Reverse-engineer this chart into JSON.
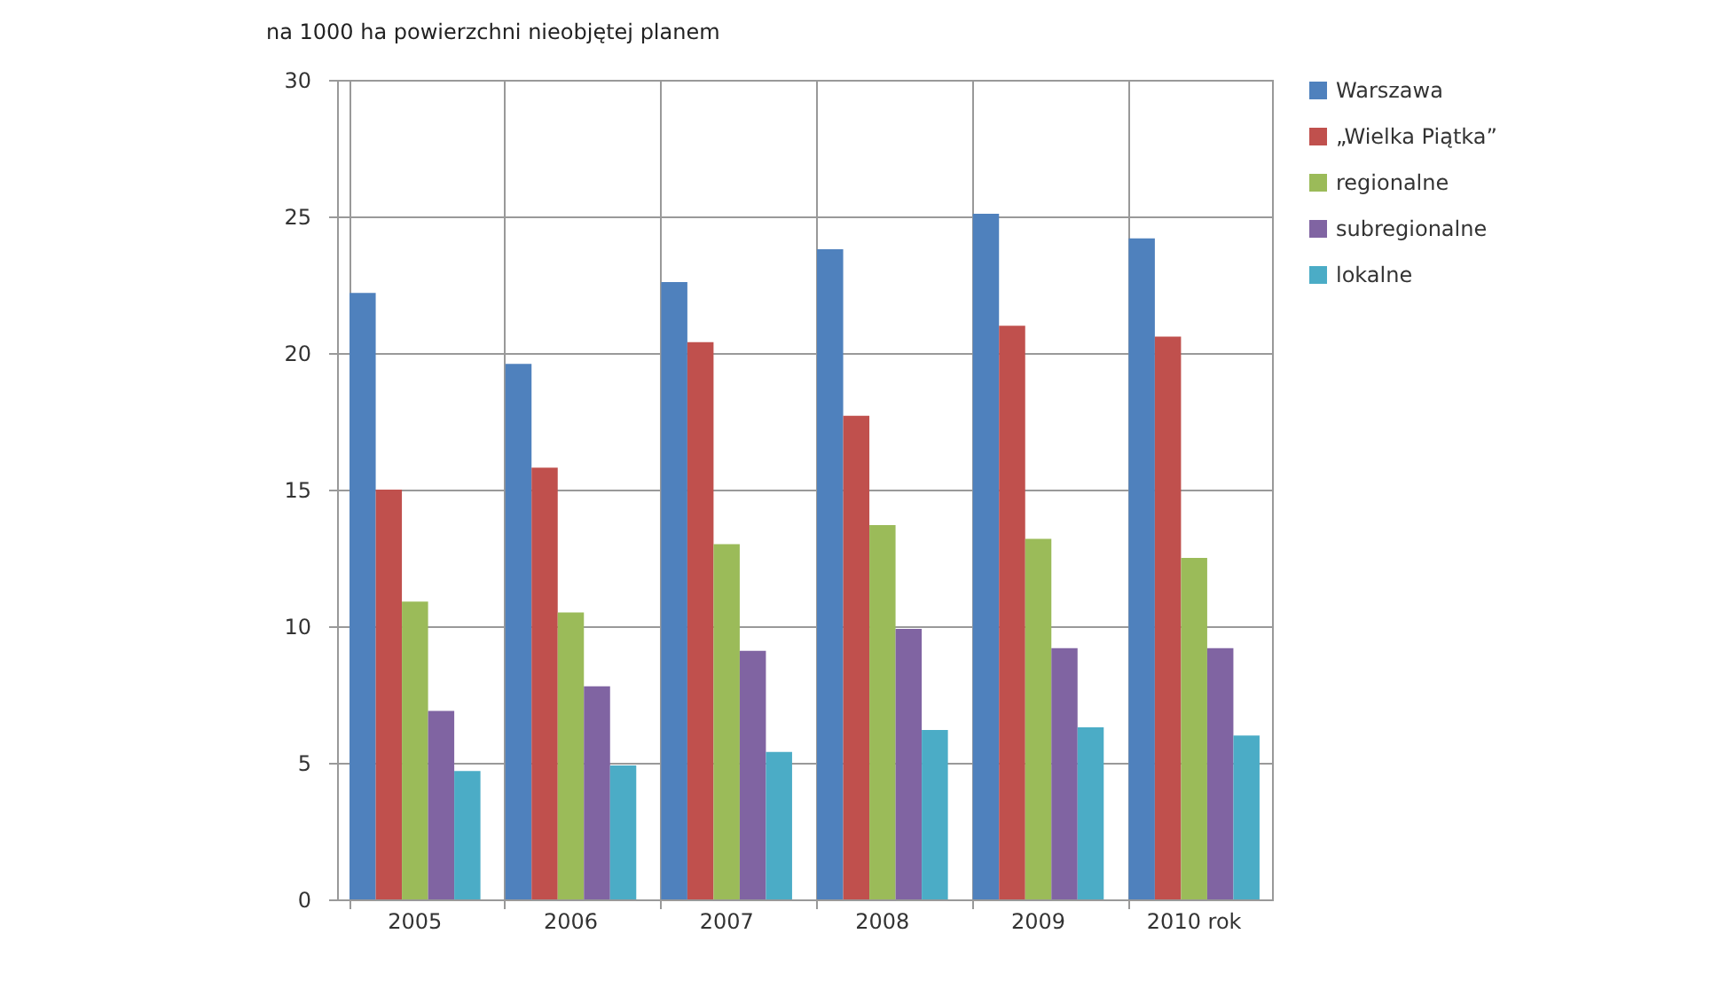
{
  "chart_data": {
    "type": "bar",
    "title": "na 1000  ha powierzchni nieobjętej planem",
    "categories": [
      "2005",
      "2006",
      "2007",
      "2008",
      "2009",
      "2010 rok"
    ],
    "series": [
      {
        "name": "Warszawa",
        "color": "#4f81bd",
        "values": [
          22.2,
          19.6,
          22.6,
          23.8,
          25.1,
          24.2
        ]
      },
      {
        "name": "„Wielka Piątka”",
        "color": "#c0504d",
        "values": [
          15.0,
          15.8,
          20.4,
          17.7,
          21.0,
          20.6
        ]
      },
      {
        "name": "regionalne",
        "color": "#9bbb59",
        "values": [
          10.9,
          10.5,
          13.0,
          13.7,
          13.2,
          12.5
        ]
      },
      {
        "name": "subregionalne",
        "color": "#8064a2",
        "values": [
          6.9,
          7.8,
          9.1,
          9.9,
          9.2,
          9.2
        ]
      },
      {
        "name": "lokalne",
        "color": "#4bacc6",
        "values": [
          4.7,
          4.9,
          5.4,
          6.2,
          6.3,
          6.0
        ]
      }
    ],
    "ylim": [
      0,
      30
    ],
    "yticks": [
      0,
      5,
      10,
      15,
      20,
      25,
      30
    ],
    "grid": true,
    "legend": "right"
  }
}
